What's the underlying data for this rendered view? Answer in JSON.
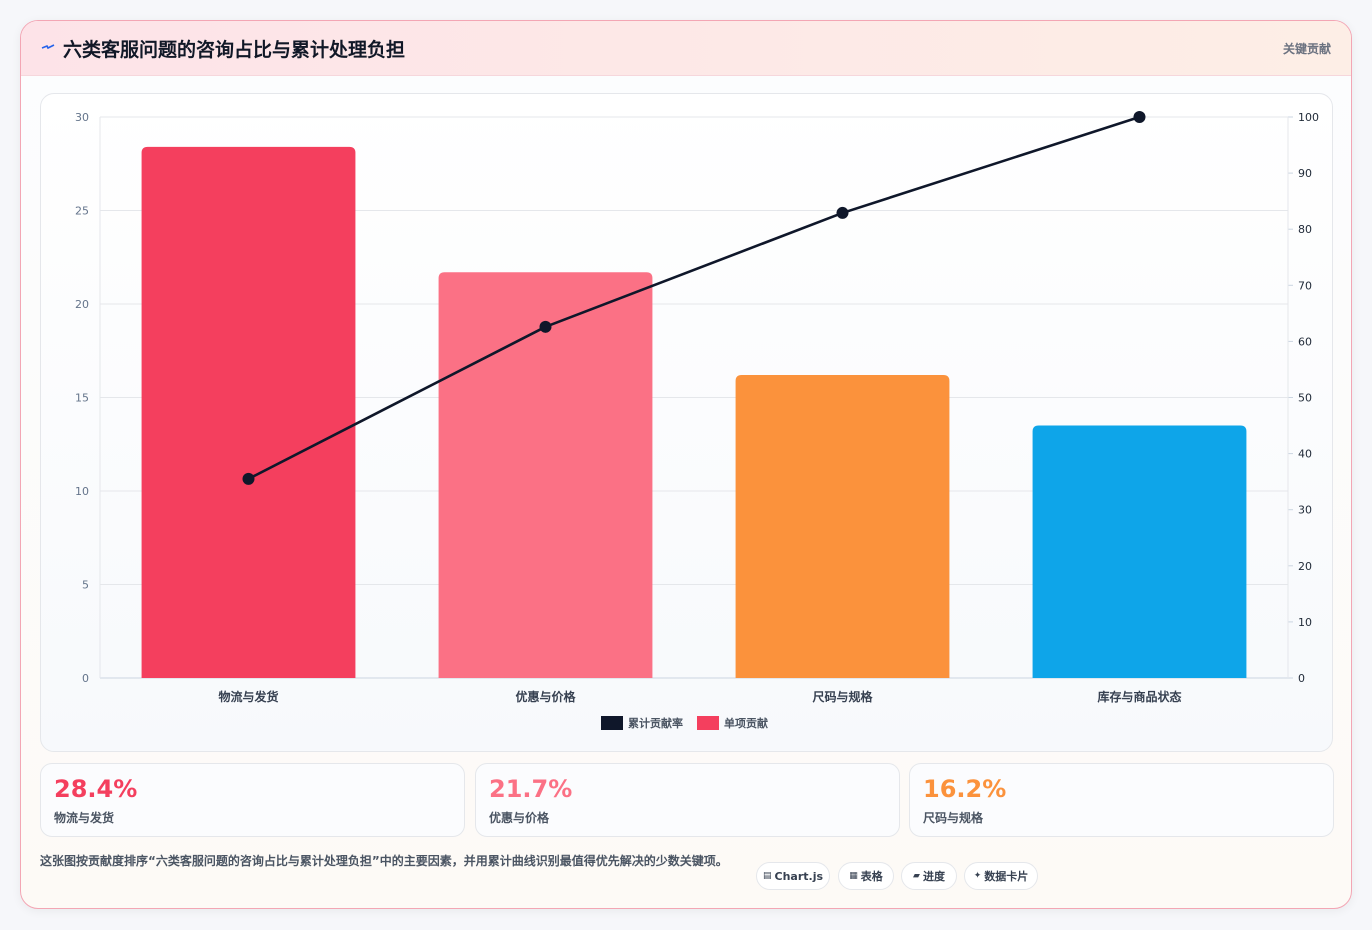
{
  "header": {
    "title": "六类客服问题的咨询占比与累计处理负担",
    "tag": "关键贡献"
  },
  "chart_data": {
    "type": "bar",
    "categories": [
      "物流与发货",
      "优惠与价格",
      "尺码与规格",
      "库存与商品状态"
    ],
    "series": [
      {
        "name": "单项贡献",
        "type": "bar",
        "axis": "left",
        "values": [
          28.4,
          21.7,
          16.2,
          13.5
        ],
        "colors": [
          "#f43f5e",
          "#fb7185",
          "#fb923c",
          "#0ea5e9"
        ]
      },
      {
        "name": "累计贡献率",
        "type": "line",
        "axis": "right",
        "values": [
          35.5,
          62.6,
          82.9,
          100
        ],
        "color": "#0f172a"
      }
    ],
    "y_left": {
      "min": 0,
      "max": 30,
      "ticks": [
        0,
        5,
        10,
        15,
        20,
        25,
        30
      ]
    },
    "y_right": {
      "min": 0,
      "max": 100,
      "ticks": [
        0,
        10,
        20,
        30,
        40,
        50,
        60,
        70,
        80,
        90,
        100
      ]
    },
    "legend": {
      "position": "bottom",
      "items": [
        {
          "label": "累计贡献率",
          "color": "#0f172a"
        },
        {
          "label": "单项贡献",
          "color": "#f43f5e"
        }
      ]
    },
    "grid": true
  },
  "stats": [
    {
      "value": "28.4%",
      "label": "物流与发货",
      "color": "#f43f5e"
    },
    {
      "value": "21.7%",
      "label": "优惠与价格",
      "color": "#fb7185"
    },
    {
      "value": "16.2%",
      "label": "尺码与规格",
      "color": "#fb923c"
    }
  ],
  "description": "这张图按贡献度排序“六类客服问题的咨询占比与累计处理负担”中的主要因素，并用累计曲线识别最值得优先解决的少数关键项。",
  "chips": [
    {
      "icon": "chart-icon",
      "label": "Chart.js"
    },
    {
      "icon": "table-icon",
      "label": "表格"
    },
    {
      "icon": "progress-icon",
      "label": "进度"
    },
    {
      "icon": "sparkle-icon",
      "label": "数据卡片"
    }
  ]
}
